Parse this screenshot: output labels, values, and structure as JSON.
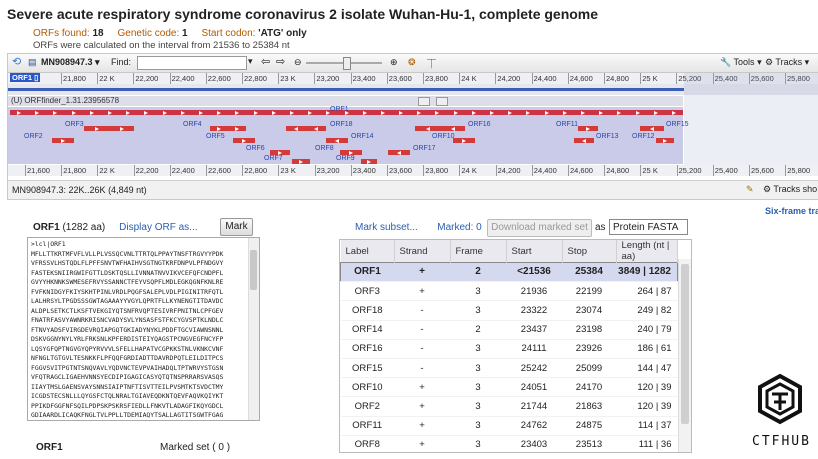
{
  "page_title": "Severe acute respiratory syndrome coronavirus 2 isolate Wuhan-Hu-1, complete genome",
  "summary": {
    "orfs_found_label": "ORFs found:",
    "orfs_found": "18",
    "genetic_code_label": "Genetic code:",
    "genetic_code": "1",
    "start_codon_label": "Start codon:",
    "start_codon": "'ATG' only",
    "interval_note": "ORFs were calculated on the interval from 21536 to 25384 nt"
  },
  "viewer": {
    "accession": "MN908947.3",
    "find_label": "Find:",
    "tools_label": "Tools",
    "tracks_label": "Tracks",
    "ruler_ticks": [
      "21,800",
      "22 K",
      "22,200",
      "22,400",
      "22,600",
      "22,800",
      "23 K",
      "23,200",
      "23,400",
      "23,600",
      "23,800",
      "24 K",
      "24,200",
      "24,400",
      "24,600",
      "24,800",
      "25 K",
      "25,200",
      "25,400",
      "25,600",
      "25,800",
      "26 K"
    ],
    "ruler_ticks_bottom": [
      "21,600",
      "21,800",
      "22 K",
      "22,200",
      "22,400",
      "22,600",
      "22,800",
      "23 K",
      "23,200",
      "23,400",
      "23,600",
      "23,800",
      "24 K",
      "24,200",
      "24,400",
      "24,600",
      "24,800",
      "25 K",
      "25,200",
      "25,400",
      "25,600",
      "25,800",
      "26 K"
    ],
    "track_name": "(U) ORFfinder_1.31.23956578",
    "orf_labels": [
      "ORF1",
      "ORF3",
      "ORF4",
      "ORF18",
      "ORF16",
      "ORF11",
      "ORF15",
      "ORF2",
      "ORF5",
      "ORF14",
      "ORF10",
      "ORF13",
      "ORF12",
      "ORF6",
      "ORF8",
      "ORF17",
      "ORF7",
      "ORF9"
    ],
    "status_text": "MN908947.3: 22K..26K (4,849 nt)",
    "tracks_show": "Tracks sho"
  },
  "six_frame_link": "Six-frame tra",
  "orf_panel": {
    "orf_name": "ORF1",
    "orf_length": "(1282 aa)",
    "display_orf_as": "Display ORF as...",
    "mark_label": "Mark",
    "sequence_lines": [
      ">lcl|ORF1",
      "MFLLTTKRTMFVFLVLLPLVSSQCVNLTTRTQLPPAYTNSFTRGVYYPDK",
      "VFRSSVLHSTQDLFLPFFSNVTWFHAIHVSGTNGTKRFDNPVLPFNDGVY",
      "FASTEKSNIIRGWIFGTTLDSKTQSLLIVNNATNVVIKVCEFQFCNDPFL",
      "GVYYHKNNKSWMESEFRVYSSANNCTFEYVSQPFLMDLEGKQGNFKNLRE",
      "FVFKNIDGYFKIYSKHTPINLVRDLPQGFSALEPLVDLPIGINITRFQTL",
      "LALHRSYLTPGDSSSGWTAGAAAYYVGYLQPRTFLLKYNENGTITDAVDC",
      "ALDPLSETKCTLKSFTVEKGIYQTSNFRVQPTESIVRFPNITNLCPFGEV",
      "FNATRFASVYAWNRKRISNCVADYSVLYNSASFSTFKCYGVSPTKLNDLC",
      "FTNVYADSFVIRGDEVRQIAPGQTGKIADYNYKLPDDFTGCVIAWNSNNL",
      "DSKVGGNYNYLYRLFRKSNLKPFERDISTEIYQAGSTPCNGVEGFNCYFP",
      "LQSYGFQPTNGVGYQPYRVVVLSFELLHAPATVCGPKKSTNLVKNKCVNF",
      "NFNGLTGTGVLTESNKKFLPFQQFGRDIADTTDAVRDPQTLEILDITPCS",
      "FGGVSVITPGTNTSNQVAVLYQDVNCTEVPVAIHADQLTPTWRVYSTGSN",
      "VFQTRAGCLIGAEHVNNSYECDIPIGAGICASYQTQTNSPRRARSVASQS",
      "IIAYTMSLGAENSVAYSNNSIAIPTNFTISVTTEILPVSMTKTSVDCTMY",
      "ICGDSTECSNLLLQYGSFCTQLNRALTGIAVEQDKNTQEVFAQVKQIYKT",
      "PPIKDFGGFNFSQILPDPSKPSKRSFIEDLLFNKVTLADAGFIKQYGDCL",
      "GDIAARDLICAQKFNGLTVLPPLLTDEMIAQYTSALLAGTITSGWTFGAG",
      "AALQIPFAMQMAYRFNGIGVTQNVLYENQKLIANQFNSAIGKIQDSLSST"
    ],
    "bottom_left_tab": "ORF1",
    "bottom_right_tab": "Marked set ( 0 )"
  },
  "results": {
    "mark_subset": "Mark subset...",
    "marked_label": "Marked: 0",
    "download_label": "Download marked set",
    "as_label": "as",
    "format_selected": "Protein FASTA",
    "columns": [
      "Label",
      "Strand",
      "Frame",
      "Start",
      "Stop",
      "Length (nt | aa)"
    ],
    "rows": [
      [
        "ORF1",
        "+",
        "2",
        "<21536",
        "25384",
        "3849 | 1282"
      ],
      [
        "ORF3",
        "+",
        "3",
        "21936",
        "22199",
        "264 | 87"
      ],
      [
        "ORF18",
        "-",
        "3",
        "23322",
        "23074",
        "249 | 82"
      ],
      [
        "ORF14",
        "-",
        "2",
        "23437",
        "23198",
        "240 | 79"
      ],
      [
        "ORF16",
        "-",
        "3",
        "24111",
        "23926",
        "186 | 61"
      ],
      [
        "ORF15",
        "-",
        "3",
        "25242",
        "25099",
        "144 | 47"
      ],
      [
        "ORF10",
        "+",
        "3",
        "24051",
        "24170",
        "120 | 39"
      ],
      [
        "ORF2",
        "+",
        "3",
        "21744",
        "21863",
        "120 | 39"
      ],
      [
        "ORF11",
        "+",
        "3",
        "24762",
        "24875",
        "114 | 37"
      ],
      [
        "ORF8",
        "+",
        "3",
        "23403",
        "23513",
        "111 | 36"
      ]
    ]
  },
  "watermark": "CTFHUB"
}
